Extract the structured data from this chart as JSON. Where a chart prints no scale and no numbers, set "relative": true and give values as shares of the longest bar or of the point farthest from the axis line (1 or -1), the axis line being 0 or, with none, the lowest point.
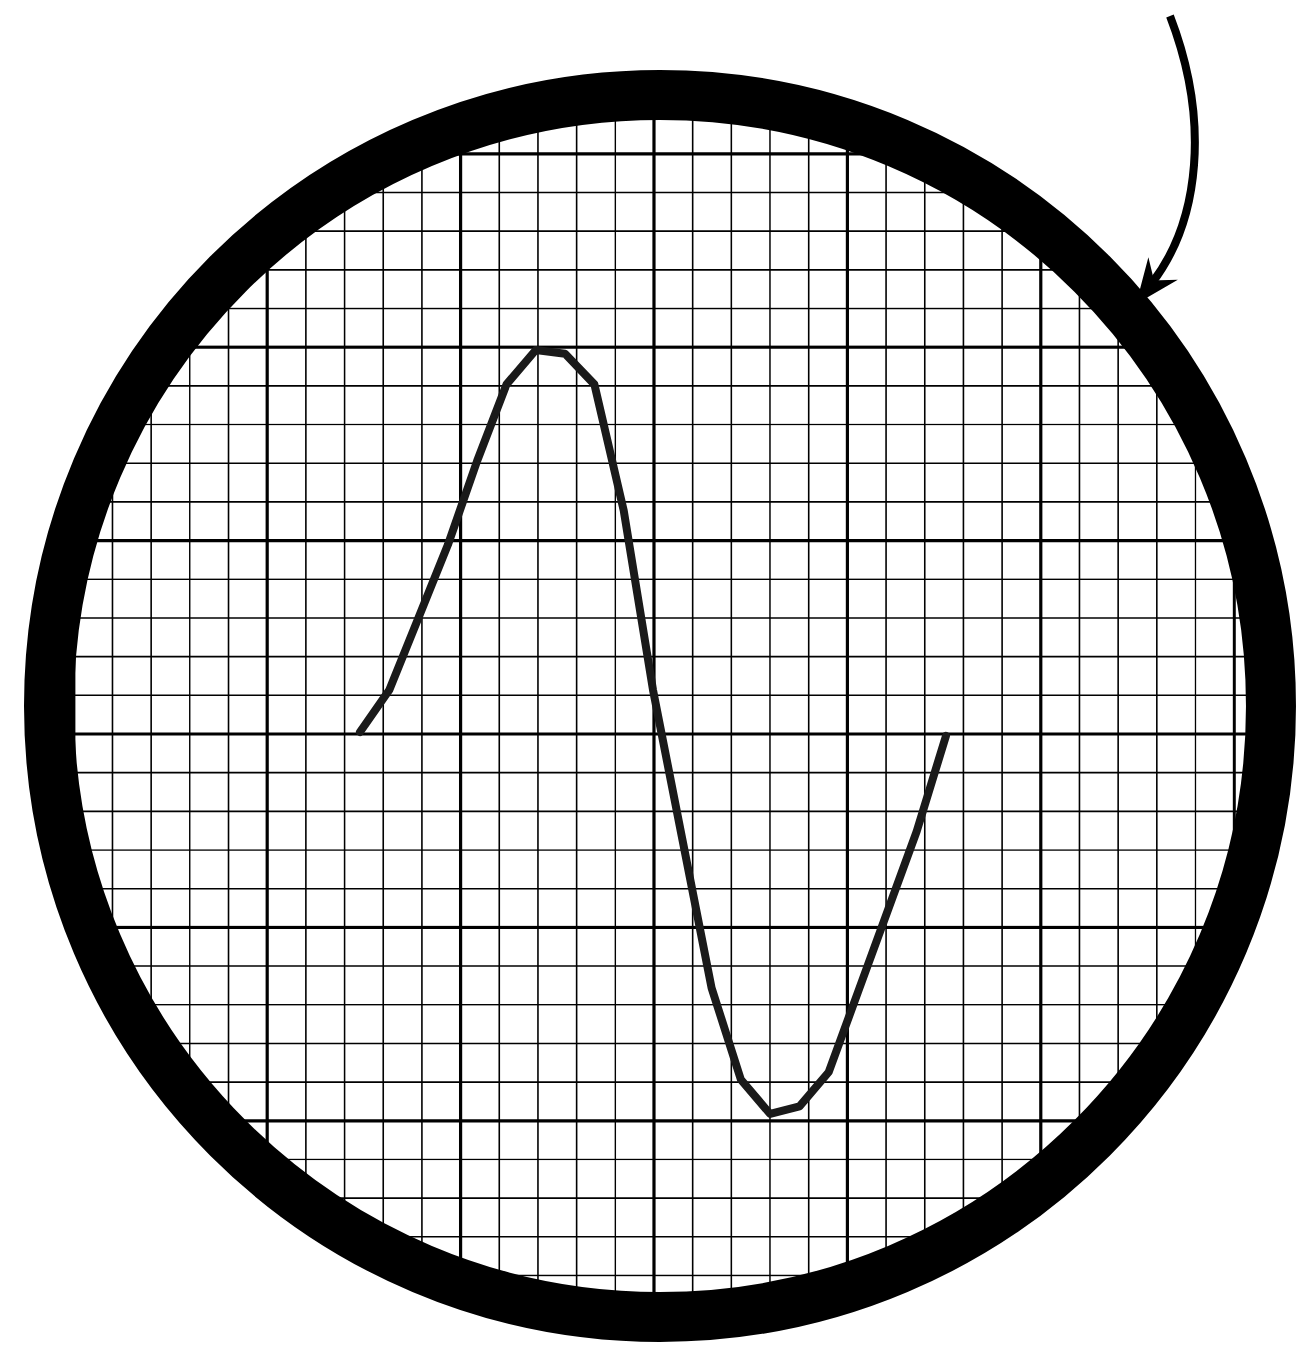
{
  "chart_data": {
    "type": "line",
    "relative": true,
    "grid": true,
    "color": "#1a1a1a",
    "marker": "none",
    "line_style": "solid",
    "categories": [
      null,
      null,
      null,
      null,
      null,
      null,
      null,
      null,
      null,
      null,
      null,
      null,
      null,
      null,
      null,
      null,
      null,
      null,
      null,
      null,
      null
    ],
    "values": [
      0,
      0.11,
      0.3,
      0.49,
      0.71,
      0.91,
      1,
      0.99,
      0.91,
      0.58,
      0.11,
      -0.28,
      -0.67,
      -0.91,
      -1,
      -0.98,
      -0.89,
      -0.68,
      -0.47,
      -0.26,
      -0.01
    ]
  }
}
